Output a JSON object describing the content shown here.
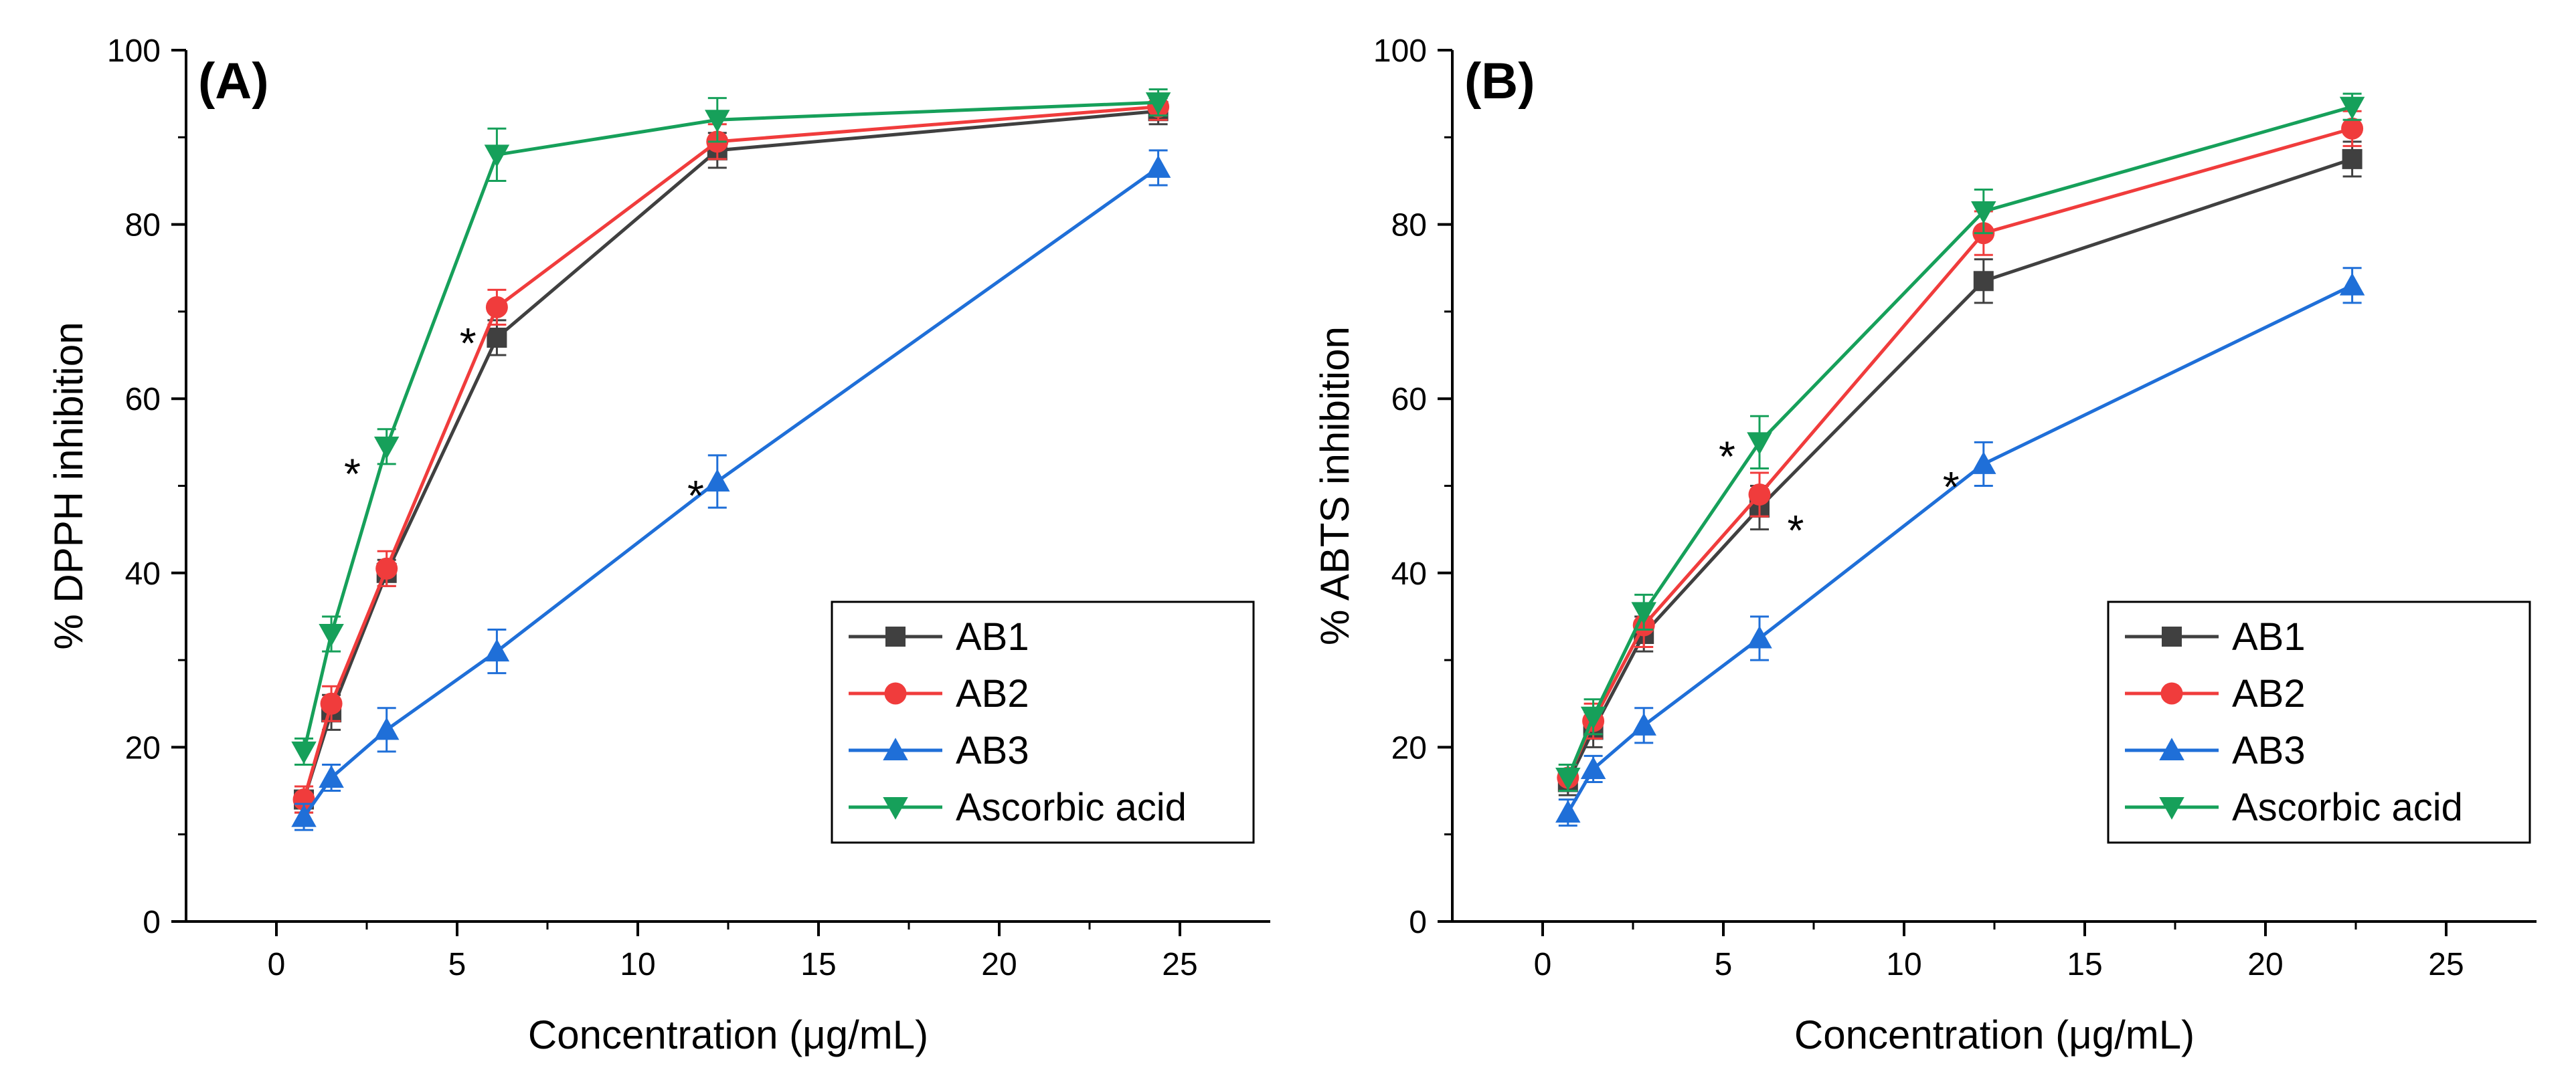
{
  "chart_data": [
    {
      "type": "line",
      "panel_label": "(A)",
      "xlabel": "Concentration (μg/mL)",
      "ylabel": "% DPPH inhibition",
      "xlim": [
        -2.5,
        27.5
      ],
      "ylim": [
        0,
        100
      ],
      "xticks": [
        0,
        5,
        10,
        15,
        20,
        25
      ],
      "yticks": [
        0,
        20,
        40,
        60,
        80,
        100
      ],
      "legend_position": "bottom-right",
      "series": [
        {
          "name": "AB1",
          "color": "#404040",
          "marker": "square",
          "x": [
            0.76,
            1.52,
            3.05,
            6.1,
            12.2,
            24.4
          ],
          "y": [
            14,
            24,
            40,
            67,
            88.5,
            93
          ],
          "err": [
            1.5,
            2,
            1.5,
            2,
            2,
            1.5
          ]
        },
        {
          "name": "AB2",
          "color": "#f03c3c",
          "marker": "circle",
          "x": [
            0.76,
            1.52,
            3.05,
            6.1,
            12.2,
            24.4
          ],
          "y": [
            14,
            25,
            40.5,
            70.5,
            89.5,
            93.5
          ],
          "err": [
            1.5,
            2,
            2,
            2,
            2,
            1.5
          ]
        },
        {
          "name": "AB3",
          "color": "#1f6fd8",
          "marker": "triangle-up",
          "x": [
            0.76,
            1.52,
            3.05,
            6.1,
            12.2,
            24.4
          ],
          "y": [
            12,
            16.5,
            22,
            31,
            50.5,
            86.5
          ],
          "err": [
            1.5,
            1.5,
            2.5,
            2.5,
            3,
            2
          ]
        },
        {
          "name": "Ascorbic acid",
          "color": "#16a05a",
          "marker": "triangle-down",
          "x": [
            0.76,
            1.52,
            3.05,
            6.1,
            12.2,
            24.4
          ],
          "y": [
            19.5,
            33,
            54.5,
            88,
            92,
            94
          ],
          "err": [
            1.5,
            2,
            2,
            3,
            2.5,
            1.5
          ]
        }
      ],
      "annotations": [
        {
          "text": "*",
          "x": 2.1,
          "y": 52
        },
        {
          "text": "*",
          "x": 5.3,
          "y": 67
        },
        {
          "text": "*",
          "x": 11.6,
          "y": 49.5
        }
      ]
    },
    {
      "type": "line",
      "panel_label": "(B)",
      "xlabel": "Concentration (μg/mL)",
      "ylabel": "% ABTS inhibition",
      "xlim": [
        -2.5,
        27.5
      ],
      "ylim": [
        0,
        100
      ],
      "xticks": [
        0,
        5,
        10,
        15,
        20,
        25
      ],
      "yticks": [
        0,
        20,
        40,
        60,
        80,
        100
      ],
      "legend_position": "bottom-right",
      "series": [
        {
          "name": "AB1",
          "color": "#404040",
          "marker": "square",
          "x": [
            0.7,
            1.4,
            2.8,
            6.0,
            12.2,
            22.4
          ],
          "y": [
            16,
            22,
            33,
            47.5,
            73.5,
            87.5
          ],
          "err": [
            1.5,
            2,
            2,
            2.5,
            2.5,
            2
          ]
        },
        {
          "name": "AB2",
          "color": "#f03c3c",
          "marker": "circle",
          "x": [
            0.7,
            1.4,
            2.8,
            6.0,
            12.2,
            22.4
          ],
          "y": [
            16.5,
            23,
            34,
            49,
            79,
            91
          ],
          "err": [
            1.5,
            2,
            2.5,
            2.5,
            2.5,
            2
          ]
        },
        {
          "name": "AB3",
          "color": "#1f6fd8",
          "marker": "triangle-up",
          "x": [
            0.7,
            1.4,
            2.8,
            6.0,
            12.2,
            22.4
          ],
          "y": [
            12.5,
            17.5,
            22.5,
            32.5,
            52.5,
            73
          ],
          "err": [
            1.5,
            1.5,
            2,
            2.5,
            2.5,
            2
          ]
        },
        {
          "name": "Ascorbic acid",
          "color": "#16a05a",
          "marker": "triangle-down",
          "x": [
            0.7,
            1.4,
            2.8,
            6.0,
            12.2,
            22.4
          ],
          "y": [
            16.5,
            23.5,
            35.5,
            55,
            81.5,
            93.5
          ],
          "err": [
            1.5,
            2,
            2,
            3,
            2.5,
            1.5
          ]
        }
      ],
      "annotations": [
        {
          "text": "*",
          "x": 5.1,
          "y": 54
        },
        {
          "text": "*",
          "x": 7.0,
          "y": 45.5
        },
        {
          "text": "*",
          "x": 11.3,
          "y": 50.5
        }
      ]
    }
  ]
}
